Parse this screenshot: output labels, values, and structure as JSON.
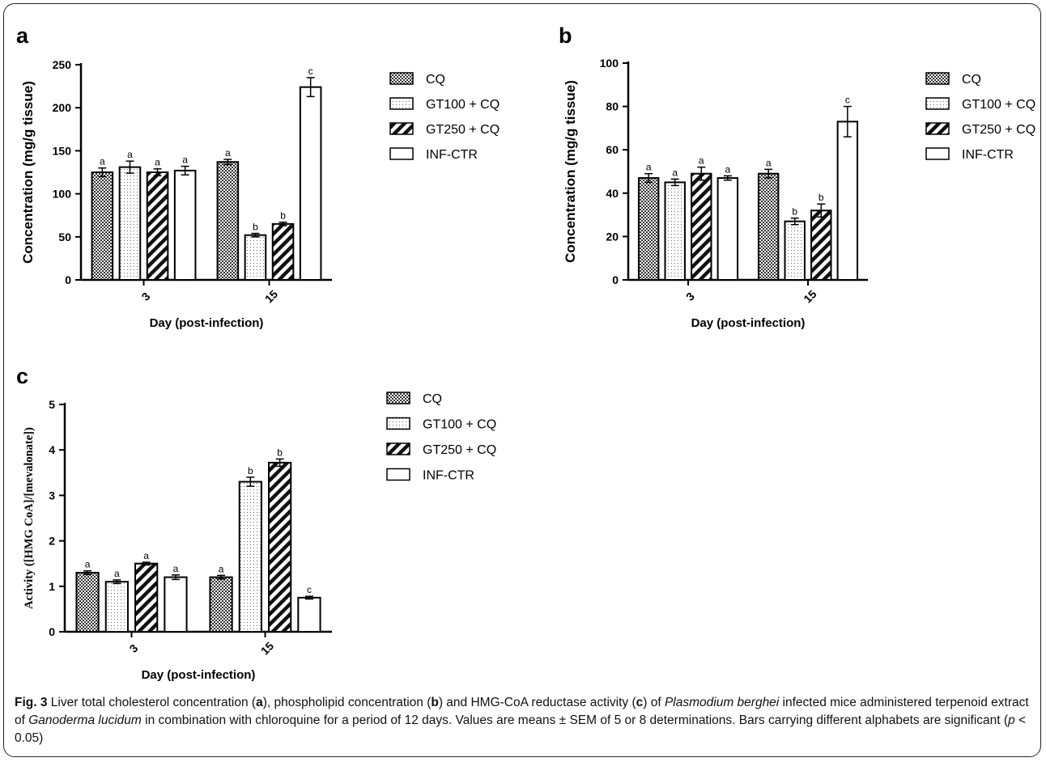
{
  "chart_data": [
    {
      "type": "bar",
      "panel_label": "a",
      "ylabel": "Concentration (mg/g tissue)",
      "xlabel": "Day (post-infection)",
      "categories": [
        "3",
        "15"
      ],
      "ylim": [
        0,
        250
      ],
      "yticks": [
        0,
        50,
        100,
        150,
        200,
        250
      ],
      "series": [
        {
          "name": "CQ",
          "values": [
            125,
            137
          ],
          "errors": [
            5,
            3
          ],
          "letters": [
            "a",
            "a"
          ]
        },
        {
          "name": "GT100 + CQ",
          "values": [
            131,
            52
          ],
          "errors": [
            7,
            2
          ],
          "letters": [
            "a",
            "b"
          ]
        },
        {
          "name": "GT250 + CQ",
          "values": [
            125,
            65
          ],
          "errors": [
            4,
            2
          ],
          "letters": [
            "a",
            "b"
          ]
        },
        {
          "name": "INF-CTR",
          "values": [
            127,
            224
          ],
          "errors": [
            5,
            11
          ],
          "letters": [
            "a",
            "c"
          ]
        }
      ],
      "legend_position": "top-right"
    },
    {
      "type": "bar",
      "panel_label": "b",
      "ylabel": "Concentration (mg/g tissue)",
      "xlabel": "Day (post-infection)",
      "categories": [
        "3",
        "15"
      ],
      "ylim": [
        0,
        100
      ],
      "yticks": [
        0,
        20,
        40,
        60,
        80,
        100
      ],
      "series": [
        {
          "name": "CQ",
          "values": [
            47,
            49
          ],
          "errors": [
            2,
            2
          ],
          "letters": [
            "a",
            "a"
          ]
        },
        {
          "name": "GT100 + CQ",
          "values": [
            45,
            27
          ],
          "errors": [
            1.5,
            1.5
          ],
          "letters": [
            "a",
            "b"
          ]
        },
        {
          "name": "GT250 + CQ",
          "values": [
            49,
            32
          ],
          "errors": [
            3,
            3
          ],
          "letters": [
            "a",
            "b"
          ]
        },
        {
          "name": "INF-CTR",
          "values": [
            47,
            73
          ],
          "errors": [
            1,
            7
          ],
          "letters": [
            "a",
            "c"
          ]
        }
      ],
      "legend_position": "top-right"
    },
    {
      "type": "bar",
      "panel_label": "c",
      "ylabel": "Activity ([HMG CoA]/[mevalonate])",
      "xlabel": "Day (post-infection)",
      "categories": [
        "3",
        "15"
      ],
      "ylim": [
        0,
        5
      ],
      "yticks": [
        0,
        1,
        2,
        3,
        4,
        5
      ],
      "series": [
        {
          "name": "CQ",
          "values": [
            1.3,
            1.2
          ],
          "errors": [
            0.04,
            0.04
          ],
          "letters": [
            "a",
            "a"
          ]
        },
        {
          "name": "GT100 + CQ",
          "values": [
            1.1,
            3.3
          ],
          "errors": [
            0.04,
            0.1
          ],
          "letters": [
            "a",
            "b"
          ]
        },
        {
          "name": "GT250 + CQ",
          "values": [
            1.5,
            3.72
          ],
          "errors": [
            0.03,
            0.08
          ],
          "letters": [
            "a",
            "b"
          ]
        },
        {
          "name": "INF-CTR",
          "values": [
            1.2,
            0.75
          ],
          "errors": [
            0.05,
            0.03
          ],
          "letters": [
            "a",
            "c"
          ]
        }
      ],
      "legend_position": "right"
    }
  ],
  "caption": {
    "fig_label": "Fig. 3",
    "t1": " Liver total cholesterol concentration (",
    "a": "a",
    "t2": "), phospholipid concentration (",
    "b": "b",
    "t3": ") and HMG-CoA reductase activity (",
    "c": "c",
    "t4": ") of ",
    "species": "Plasmodium berghei",
    "t5": " infected mice administered terpenoid extract of ",
    "fungus": "Ganoderma lucidum",
    "t6": " in combination with chloroquine for a period of 12 days. Values are means ± SEM of 5 or 8 determinations. Bars carrying different alphabets are significant (",
    "p": "p",
    "t7": " < 0.05)"
  }
}
